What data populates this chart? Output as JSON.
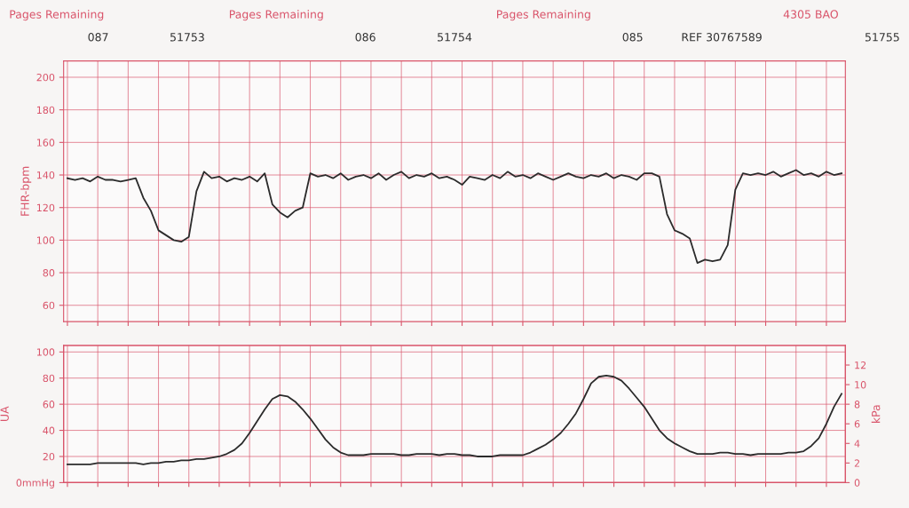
{
  "chart_data": [
    {
      "type": "line",
      "ylabel": "FHR-bpm",
      "ylim": [
        50,
        210
      ],
      "yticks": [
        60,
        80,
        100,
        120,
        140,
        160,
        180,
        200
      ],
      "grid": true,
      "tick_labels": "y",
      "annotations": [
        "Pages Remaining",
        "087",
        "51753",
        "Pages Remaining",
        "086",
        "51754",
        "Pages Remaining",
        "085",
        "REF 30767589",
        "4305 BAO",
        "51755"
      ],
      "categories": [
        null,
        null,
        null,
        null,
        null,
        null,
        null,
        null,
        null,
        null,
        null,
        null,
        null,
        null,
        null,
        null,
        null,
        null,
        null,
        null,
        null,
        null,
        null,
        null,
        null,
        null,
        null,
        null,
        null,
        null,
        null,
        null,
        null,
        null,
        null,
        null,
        null,
        null,
        null,
        null,
        null,
        null,
        null,
        null,
        null,
        null,
        null,
        null,
        null,
        null,
        null,
        null,
        null,
        null,
        null,
        null,
        null,
        null,
        null,
        null,
        null,
        null,
        null,
        null,
        null,
        null,
        null,
        null,
        null,
        null,
        null,
        null,
        null,
        null,
        null,
        null,
        null,
        null,
        null,
        null,
        null,
        null,
        null,
        null,
        null,
        null,
        null,
        null,
        null,
        null,
        null,
        null,
        null,
        null,
        null,
        null,
        null,
        null,
        null,
        null,
        null,
        null,
        null
      ],
      "series": [
        {
          "color": "#2b2b2b",
          "values": [
            138,
            137,
            138,
            136,
            139,
            137,
            137,
            136,
            137,
            138,
            126,
            118,
            106,
            103,
            100,
            99,
            102,
            130,
            142,
            138,
            139,
            136,
            138,
            137,
            139,
            136,
            141,
            122,
            117,
            114,
            118,
            120,
            141,
            139,
            140,
            138,
            141,
            137,
            139,
            140,
            138,
            141,
            137,
            140,
            142,
            138,
            140,
            139,
            141,
            138,
            139,
            137,
            134,
            139,
            138,
            137,
            140,
            138,
            142,
            139,
            140,
            138,
            141,
            139,
            137,
            139,
            141,
            139,
            138,
            140,
            139,
            141,
            138,
            140,
            139,
            137,
            141,
            141,
            139,
            116,
            106,
            104,
            101,
            86,
            88,
            87,
            88,
            97,
            131,
            141,
            140,
            141,
            140,
            142,
            139,
            141,
            143,
            140,
            141,
            139,
            142,
            140,
            141
          ]
        }
      ]
    },
    {
      "type": "line",
      "ylabel": "UA",
      "ylim": [
        0,
        105
      ],
      "yticks": [
        {
          "value": 0,
          "label": "0mmHg"
        },
        20,
        40,
        60,
        80,
        100
      ],
      "y2label": "kPa",
      "y2lim": [
        0,
        14
      ],
      "y2ticks": [
        0,
        2,
        4,
        6,
        8,
        10,
        12
      ],
      "grid": true,
      "tick_labels": "y",
      "categories": [
        null,
        null,
        null,
        null,
        null,
        null,
        null,
        null,
        null,
        null,
        null,
        null,
        null,
        null,
        null,
        null,
        null,
        null,
        null,
        null,
        null,
        null,
        null,
        null,
        null,
        null,
        null,
        null,
        null,
        null,
        null,
        null,
        null,
        null,
        null,
        null,
        null,
        null,
        null,
        null,
        null,
        null,
        null,
        null,
        null,
        null,
        null,
        null,
        null,
        null,
        null,
        null,
        null,
        null,
        null,
        null,
        null,
        null,
        null,
        null,
        null,
        null,
        null,
        null,
        null,
        null,
        null,
        null,
        null,
        null,
        null,
        null,
        null,
        null,
        null,
        null,
        null,
        null,
        null,
        null,
        null,
        null,
        null,
        null,
        null,
        null,
        null,
        null,
        null,
        null,
        null,
        null,
        null,
        null,
        null,
        null,
        null,
        null,
        null,
        null,
        null,
        null,
        null
      ],
      "series": [
        {
          "color": "#2b2b2b",
          "values": [
            14,
            14,
            14,
            14,
            15,
            15,
            15,
            15,
            15,
            15,
            14,
            15,
            15,
            16,
            16,
            17,
            17,
            18,
            18,
            19,
            20,
            22,
            25,
            30,
            38,
            47,
            56,
            64,
            67,
            66,
            62,
            56,
            49,
            41,
            33,
            27,
            23,
            21,
            21,
            21,
            22,
            22,
            22,
            22,
            21,
            21,
            22,
            22,
            22,
            21,
            22,
            22,
            21,
            21,
            20,
            20,
            20,
            21,
            21,
            21,
            21,
            23,
            26,
            29,
            33,
            38,
            45,
            53,
            64,
            76,
            81,
            82,
            81,
            78,
            72,
            65,
            58,
            49,
            40,
            34,
            30,
            27,
            24,
            22,
            22,
            22,
            23,
            23,
            22,
            22,
            21,
            22,
            22,
            22,
            22,
            23,
            23,
            24,
            28,
            34,
            45,
            58,
            68
          ]
        }
      ]
    }
  ]
}
